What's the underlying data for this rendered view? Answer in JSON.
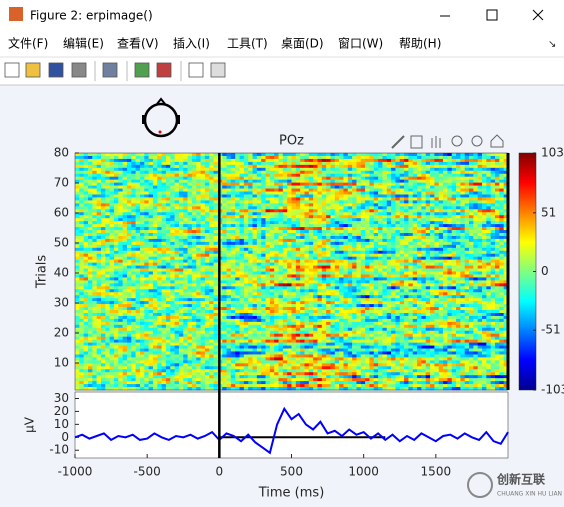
{
  "window": {
    "title": "Figure 2:  erpimage()",
    "menu": [
      "文件(F)",
      "编辑(E)",
      "查看(V)",
      "插入(I)",
      "工具(T)",
      "桌面(D)",
      "窗口(W)",
      "帮助(H)"
    ]
  },
  "chart_data": [
    {
      "type": "heatmap",
      "title": "POz",
      "ylabel": "Trials",
      "xlim": [
        -1000,
        2000
      ],
      "ylim": [
        1,
        80
      ],
      "yticks": [
        10,
        20,
        30,
        40,
        50,
        60,
        70,
        80
      ],
      "colorbar": {
        "clim": [
          -103,
          103
        ],
        "ticks": [
          103,
          51,
          0,
          -51,
          -103
        ]
      }
    },
    {
      "type": "line",
      "xlabel": "Time (ms)",
      "ylabel": "μV",
      "xlim": [
        -1000,
        2000
      ],
      "ylim": [
        -16,
        35
      ],
      "xticks": [
        -1000,
        -500,
        0,
        500,
        1000,
        1500
      ],
      "yticks": [
        -10,
        0,
        10,
        20,
        30
      ],
      "x": [
        -1000,
        -950,
        -900,
        -850,
        -800,
        -750,
        -700,
        -650,
        -600,
        -550,
        -500,
        -450,
        -400,
        -350,
        -300,
        -250,
        -200,
        -150,
        -100,
        -50,
        0,
        50,
        100,
        150,
        200,
        250,
        300,
        350,
        400,
        450,
        500,
        550,
        600,
        650,
        700,
        750,
        800,
        850,
        900,
        950,
        1000,
        1050,
        1100,
        1150,
        1200,
        1250,
        1300,
        1350,
        1400,
        1450,
        1500,
        1550,
        1600,
        1650,
        1700,
        1750,
        1800,
        1850,
        1900,
        1950,
        2000
      ],
      "series": [
        {
          "color": "#0000ff",
          "values": [
            0,
            2,
            -1,
            1,
            3,
            -2,
            1,
            0,
            2,
            -2,
            -1,
            3,
            0,
            -2,
            1,
            0,
            2,
            -1,
            1,
            4,
            -2,
            3,
            1,
            -3,
            2,
            -4,
            -8,
            -12,
            10,
            22,
            14,
            18,
            10,
            6,
            12,
            3,
            5,
            1,
            6,
            2,
            4,
            -1,
            3,
            -2,
            2,
            -3,
            1,
            -2,
            3,
            0,
            -3,
            1,
            2,
            -1,
            3,
            0,
            -2,
            4,
            -3,
            -5,
            4
          ]
        }
      ]
    }
  ],
  "watermark": {
    "name": "创新互联",
    "subtitle": "CHUANG XIN HU LIAN"
  }
}
